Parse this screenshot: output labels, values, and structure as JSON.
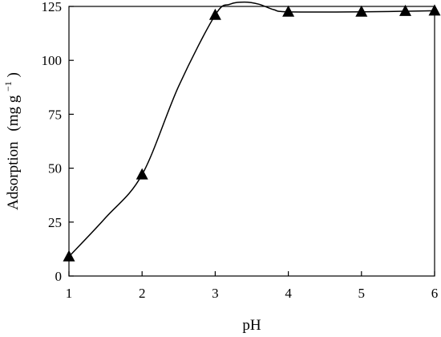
{
  "chart_data": {
    "type": "scatter",
    "title": "",
    "xlabel": "pH",
    "ylabel_main": "Adsorption",
    "ylabel_unit_prefix": "(mg g",
    "ylabel_unit_exp": "−1",
    "ylabel_unit_suffix": ")",
    "xlim": [
      1,
      6
    ],
    "ylim": [
      0,
      125
    ],
    "xticks": [
      1,
      2,
      3,
      4,
      5,
      6
    ],
    "yticks": [
      0,
      25,
      50,
      75,
      100,
      125
    ],
    "grid": false,
    "legend": "none",
    "marker": "triangle",
    "series": [
      {
        "x": [
          1,
          2,
          3,
          4,
          5,
          5.6,
          6
        ],
        "y": [
          9,
          47,
          121,
          122.5,
          122.5,
          122.8,
          123
        ]
      }
    ],
    "smooth_curve": {
      "x": [
        1,
        1.5,
        2,
        2.5,
        3,
        3.2,
        3.4,
        3.6,
        3.8,
        4,
        5,
        6
      ],
      "y": [
        9,
        27,
        47,
        88,
        121,
        126,
        127,
        126,
        123.5,
        122.5,
        122.5,
        123
      ]
    },
    "colors": {
      "axis": "#000000",
      "marker": "#000000",
      "line": "#000000"
    }
  }
}
